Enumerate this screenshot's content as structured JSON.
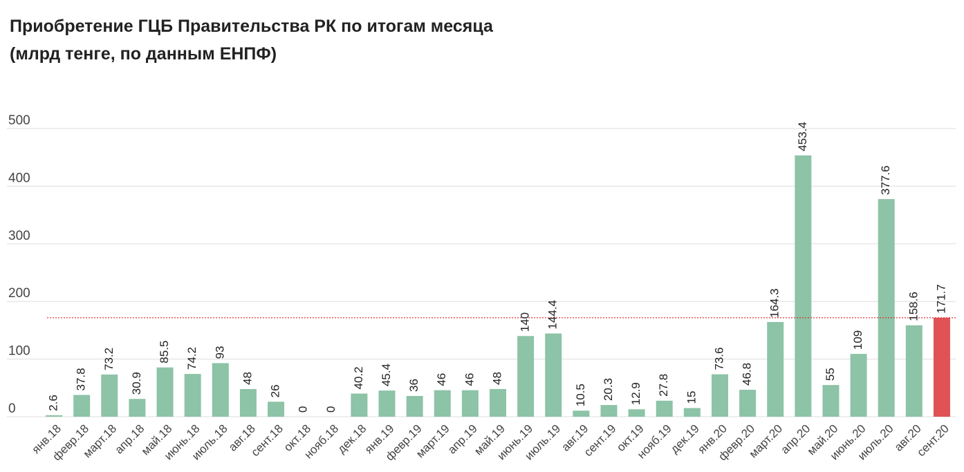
{
  "chart_data": {
    "type": "bar",
    "title": "Приобретение ГЦБ Правительства РК по итогам месяца",
    "subtitle": "(млрд тенге, по данным ЕНПФ)",
    "xlabel": "",
    "ylabel": "",
    "ylim": [
      0,
      500
    ],
    "yticks": [
      "0",
      "100",
      "200",
      "300",
      "400",
      "500"
    ],
    "grid": true,
    "legend": "none",
    "categories": [
      "янв.18",
      "февр.18",
      "март.18",
      "апр.18",
      "май.18",
      "июнь.18",
      "июль.18",
      "авг.18",
      "сент.18",
      "окт.18",
      "нояб.18",
      "дек.18",
      "янв.19",
      "февр.19",
      "март.19",
      "апр.19",
      "май.19",
      "июнь.19",
      "июль.19",
      "авг.19",
      "сент.19",
      "окт.19",
      "нояб.19",
      "дек.19",
      "янв.20",
      "февр.20",
      "март.20",
      "апр.20",
      "май.20",
      "июнь.20",
      "июль.20",
      "авг.20",
      "сент.20"
    ],
    "values": [
      2.6,
      37.8,
      73.2,
      30.9,
      85.5,
      74.2,
      93,
      48,
      26,
      0,
      0,
      40.2,
      45.4,
      36,
      46,
      46,
      48,
      140,
      144.4,
      10.5,
      20.3,
      12.9,
      27.8,
      15,
      73.6,
      46.8,
      164.3,
      453.4,
      55,
      109,
      377.6,
      158.6,
      171.7
    ],
    "value_labels": [
      "2.6",
      "37.8",
      "73.2",
      "30.9",
      "85.5",
      "74.2",
      "93",
      "48",
      "26",
      "0",
      "0",
      "40.2",
      "45.4",
      "36",
      "46",
      "46",
      "48",
      "140",
      "144.4",
      "10.5",
      "20.3",
      "12.9",
      "27.8",
      "15",
      "73.6",
      "46.8",
      "164.3",
      "453.4",
      "55",
      "109",
      "377.6",
      "158.6",
      "171.7"
    ],
    "highlight_index": 32,
    "reference_line": 171.7,
    "colors": {
      "bar": "#8dc3a7",
      "highlight": "#e05256",
      "reference_line": "#e02020",
      "grid": "#dddddd",
      "axis_text": "#444444",
      "label_text": "#222222"
    }
  }
}
